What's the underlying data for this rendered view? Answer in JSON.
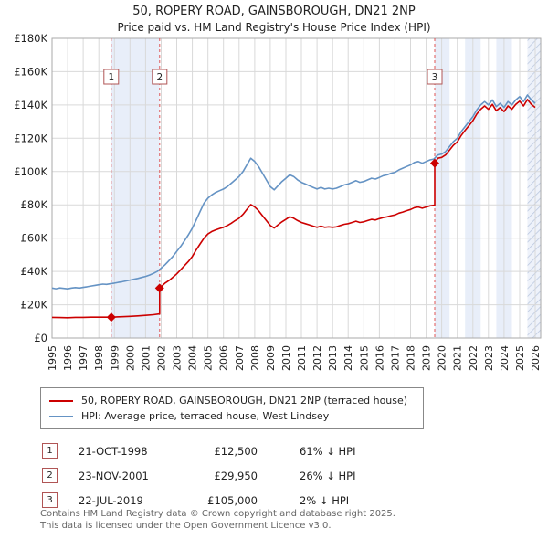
{
  "colors": {
    "property_line": "#cc0000",
    "hpi_line": "#6593c4",
    "band": "#e8eef9",
    "grid": "#d9d9d9",
    "sale_dashed": "#e05555",
    "plot_border": "#aaaaaa",
    "marker": "#cc0000",
    "numbox_border": "#b05555"
  },
  "chart_data": {
    "type": "line",
    "title": "50, ROPERY ROAD, GAINSBOROUGH, DN21 2NP",
    "subtitle": "Price paid vs. HM Land Registry's House Price Index (HPI)",
    "x_min": 1995,
    "x_max": 2026.35,
    "y_max_k": 180,
    "y_unit": "GBP, values in thousands",
    "y_tick_labels": [
      "£0",
      "£20K",
      "£40K",
      "£60K",
      "£80K",
      "£100K",
      "£120K",
      "£140K",
      "£160K",
      "£180K"
    ],
    "x_ticks": [
      1995,
      1996,
      1997,
      1998,
      1999,
      2000,
      2001,
      2002,
      2003,
      2004,
      2005,
      2006,
      2007,
      2008,
      2009,
      2010,
      2011,
      2012,
      2013,
      2014,
      2015,
      2016,
      2017,
      2018,
      2019,
      2020,
      2021,
      2022,
      2023,
      2024,
      2025,
      2026
    ],
    "grid": true,
    "legend_position": "bottom",
    "bands": [
      [
        1998.8,
        2001.9
      ],
      [
        2019.55,
        2020.5
      ],
      [
        2021.5,
        2022.5
      ],
      [
        2023.5,
        2024.5
      ],
      [
        2025.5,
        2026.35
      ]
    ],
    "hatch": [
      2025.5,
      2026.35
    ],
    "sales": [
      {
        "n": 1,
        "x": 1998.8,
        "y": 12.5
      },
      {
        "n": 2,
        "x": 2001.9,
        "y": 29.95
      },
      {
        "n": 3,
        "x": 2019.55,
        "y": 105
      }
    ],
    "series": [
      {
        "name": "50, ROPERY ROAD, GAINSBOROUGH, DN21 2NP (terraced house)",
        "color": "#cc0000",
        "width": 1.6,
        "points": [
          [
            1995,
            12.4
          ],
          [
            1995.5,
            12.3
          ],
          [
            1996,
            12.2
          ],
          [
            1996.5,
            12.4
          ],
          [
            1997,
            12.4
          ],
          [
            1997.5,
            12.5
          ],
          [
            1998,
            12.5
          ],
          [
            1998.8,
            12.5
          ],
          [
            1999.5,
            12.8
          ],
          [
            2000,
            13
          ],
          [
            2000.5,
            13.3
          ],
          [
            2001,
            13.6
          ],
          [
            2001.5,
            14
          ],
          [
            2001.9,
            14.5
          ],
          [
            2001.9,
            29.95
          ],
          [
            2002.25,
            33
          ],
          [
            2002.5,
            34.5
          ],
          [
            2002.75,
            36.5
          ],
          [
            2003,
            38.5
          ],
          [
            2003.25,
            41
          ],
          [
            2003.5,
            43.5
          ],
          [
            2003.75,
            46
          ],
          [
            2004,
            49
          ],
          [
            2004.25,
            53
          ],
          [
            2004.5,
            56.5
          ],
          [
            2004.75,
            60
          ],
          [
            2005,
            62.5
          ],
          [
            2005.25,
            64
          ],
          [
            2005.5,
            65
          ],
          [
            2005.75,
            65.8
          ],
          [
            2006,
            66.5
          ],
          [
            2006.25,
            67.6
          ],
          [
            2006.5,
            69
          ],
          [
            2006.75,
            70.6
          ],
          [
            2007,
            72
          ],
          [
            2007.25,
            74.3
          ],
          [
            2007.5,
            77.2
          ],
          [
            2007.75,
            80.2
          ],
          [
            2008,
            78.7
          ],
          [
            2008.25,
            76.5
          ],
          [
            2008.5,
            73.5
          ],
          [
            2008.75,
            70.6
          ],
          [
            2009,
            67.6
          ],
          [
            2009.25,
            66.1
          ],
          [
            2009.5,
            68
          ],
          [
            2009.75,
            69.8
          ],
          [
            2010,
            71.3
          ],
          [
            2010.25,
            72.8
          ],
          [
            2010.5,
            72
          ],
          [
            2010.75,
            70.6
          ],
          [
            2011,
            69.4
          ],
          [
            2011.25,
            68.7
          ],
          [
            2011.5,
            68
          ],
          [
            2011.75,
            67.2
          ],
          [
            2012,
            66.5
          ],
          [
            2012.25,
            67.2
          ],
          [
            2012.5,
            66.5
          ],
          [
            2012.75,
            66.8
          ],
          [
            2013,
            66.5
          ],
          [
            2013.25,
            66.8
          ],
          [
            2013.5,
            67.6
          ],
          [
            2013.75,
            68.3
          ],
          [
            2014,
            68.7
          ],
          [
            2014.25,
            69.4
          ],
          [
            2014.5,
            70.2
          ],
          [
            2014.75,
            69.4
          ],
          [
            2015,
            69.8
          ],
          [
            2015.25,
            70.6
          ],
          [
            2015.5,
            71.3
          ],
          [
            2015.75,
            70.9
          ],
          [
            2016,
            71.7
          ],
          [
            2016.25,
            72.4
          ],
          [
            2016.5,
            72.8
          ],
          [
            2016.75,
            73.5
          ],
          [
            2017,
            73.9
          ],
          [
            2017.25,
            75
          ],
          [
            2017.5,
            75.7
          ],
          [
            2017.75,
            76.5
          ],
          [
            2018,
            77.2
          ],
          [
            2018.25,
            78.3
          ],
          [
            2018.5,
            78.7
          ],
          [
            2018.75,
            78
          ],
          [
            2019,
            78.7
          ],
          [
            2019.25,
            79.4
          ],
          [
            2019.55,
            79.8
          ],
          [
            2019.55,
            105
          ],
          [
            2019.75,
            108
          ],
          [
            2020,
            108.5
          ],
          [
            2020.25,
            110
          ],
          [
            2020.5,
            112.9
          ],
          [
            2020.75,
            115.8
          ],
          [
            2021,
            117.8
          ],
          [
            2021.25,
            121.7
          ],
          [
            2021.5,
            124.7
          ],
          [
            2021.75,
            127.6
          ],
          [
            2022,
            130.6
          ],
          [
            2022.25,
            134.5
          ],
          [
            2022.5,
            137.4
          ],
          [
            2022.75,
            139.4
          ],
          [
            2023,
            137.4
          ],
          [
            2023.25,
            140.4
          ],
          [
            2023.5,
            136.5
          ],
          [
            2023.75,
            138.4
          ],
          [
            2024,
            136
          ],
          [
            2024.25,
            139.4
          ],
          [
            2024.5,
            137.4
          ],
          [
            2024.75,
            140.4
          ],
          [
            2025,
            142.3
          ],
          [
            2025.25,
            139.4
          ],
          [
            2025.5,
            143.3
          ],
          [
            2025.75,
            140.4
          ],
          [
            2026,
            138.5
          ]
        ]
      },
      {
        "name": "HPI: Average price, terraced house, West Lindsey",
        "color": "#6593c4",
        "width": 1.6,
        "points": [
          [
            1995,
            30
          ],
          [
            1995.25,
            29.6
          ],
          [
            1995.5,
            30.1
          ],
          [
            1995.75,
            29.8
          ],
          [
            1996,
            29.5
          ],
          [
            1996.25,
            30
          ],
          [
            1996.5,
            30.3
          ],
          [
            1996.75,
            30
          ],
          [
            1997,
            30.4
          ],
          [
            1997.25,
            30.8
          ],
          [
            1997.5,
            31.2
          ],
          [
            1997.75,
            31.6
          ],
          [
            1998,
            32
          ],
          [
            1998.25,
            32.4
          ],
          [
            1998.5,
            32.2
          ],
          [
            1998.75,
            32.6
          ],
          [
            1999,
            33
          ],
          [
            1999.25,
            33.4
          ],
          [
            1999.5,
            33.8
          ],
          [
            1999.75,
            34.3
          ],
          [
            2000,
            34.8
          ],
          [
            2000.25,
            35.3
          ],
          [
            2000.5,
            35.8
          ],
          [
            2000.75,
            36.4
          ],
          [
            2001,
            37
          ],
          [
            2001.25,
            37.8
          ],
          [
            2001.5,
            38.8
          ],
          [
            2001.75,
            40
          ],
          [
            2002,
            42
          ],
          [
            2002.25,
            44
          ],
          [
            2002.5,
            46.5
          ],
          [
            2002.75,
            49
          ],
          [
            2003,
            52
          ],
          [
            2003.25,
            55
          ],
          [
            2003.5,
            58.5
          ],
          [
            2003.75,
            62
          ],
          [
            2004,
            66
          ],
          [
            2004.25,
            71
          ],
          [
            2004.5,
            76
          ],
          [
            2004.75,
            81
          ],
          [
            2005,
            84
          ],
          [
            2005.25,
            86
          ],
          [
            2005.5,
            87.5
          ],
          [
            2005.75,
            88.5
          ],
          [
            2006,
            89.5
          ],
          [
            2006.25,
            91
          ],
          [
            2006.5,
            93
          ],
          [
            2006.75,
            95
          ],
          [
            2007,
            97
          ],
          [
            2007.25,
            100
          ],
          [
            2007.5,
            104
          ],
          [
            2007.75,
            108
          ],
          [
            2008,
            106
          ],
          [
            2008.25,
            103
          ],
          [
            2008.5,
            99
          ],
          [
            2008.75,
            95
          ],
          [
            2009,
            91
          ],
          [
            2009.25,
            89
          ],
          [
            2009.5,
            91.5
          ],
          [
            2009.75,
            94
          ],
          [
            2010,
            96
          ],
          [
            2010.25,
            98
          ],
          [
            2010.5,
            97
          ],
          [
            2010.75,
            95
          ],
          [
            2011,
            93.5
          ],
          [
            2011.25,
            92.5
          ],
          [
            2011.5,
            91.5
          ],
          [
            2011.75,
            90.5
          ],
          [
            2012,
            89.5
          ],
          [
            2012.25,
            90.5
          ],
          [
            2012.5,
            89.5
          ],
          [
            2012.75,
            90
          ],
          [
            2013,
            89.5
          ],
          [
            2013.25,
            90
          ],
          [
            2013.5,
            91
          ],
          [
            2013.75,
            92
          ],
          [
            2014,
            92.5
          ],
          [
            2014.25,
            93.5
          ],
          [
            2014.5,
            94.5
          ],
          [
            2014.75,
            93.5
          ],
          [
            2015,
            94
          ],
          [
            2015.25,
            95
          ],
          [
            2015.5,
            96
          ],
          [
            2015.75,
            95.5
          ],
          [
            2016,
            96.5
          ],
          [
            2016.25,
            97.5
          ],
          [
            2016.5,
            98
          ],
          [
            2016.75,
            99
          ],
          [
            2017,
            99.5
          ],
          [
            2017.25,
            101
          ],
          [
            2017.5,
            102
          ],
          [
            2017.75,
            103
          ],
          [
            2018,
            104
          ],
          [
            2018.25,
            105.5
          ],
          [
            2018.5,
            106
          ],
          [
            2018.75,
            105
          ],
          [
            2019,
            106
          ],
          [
            2019.25,
            107
          ],
          [
            2019.5,
            107.5
          ],
          [
            2019.75,
            110
          ],
          [
            2020,
            110.5
          ],
          [
            2020.25,
            112
          ],
          [
            2020.5,
            115
          ],
          [
            2020.75,
            118
          ],
          [
            2021,
            120
          ],
          [
            2021.25,
            124
          ],
          [
            2021.5,
            127
          ],
          [
            2021.75,
            130
          ],
          [
            2022,
            133
          ],
          [
            2022.25,
            137
          ],
          [
            2022.5,
            140
          ],
          [
            2022.75,
            142
          ],
          [
            2023,
            140
          ],
          [
            2023.25,
            143
          ],
          [
            2023.5,
            139
          ],
          [
            2023.75,
            141
          ],
          [
            2024,
            138.5
          ],
          [
            2024.25,
            142
          ],
          [
            2024.5,
            140
          ],
          [
            2024.75,
            143
          ],
          [
            2025,
            145
          ],
          [
            2025.25,
            142
          ],
          [
            2025.5,
            146
          ],
          [
            2025.75,
            143
          ],
          [
            2026,
            141
          ]
        ]
      }
    ]
  },
  "transactions": [
    {
      "num": "1",
      "date": "21-OCT-1998",
      "price": "£12,500",
      "hpi": "61% ↓ HPI"
    },
    {
      "num": "2",
      "date": "23-NOV-2001",
      "price": "£29,950",
      "hpi": "26% ↓ HPI"
    },
    {
      "num": "3",
      "date": "22-JUL-2019",
      "price": "£105,000",
      "hpi": "2% ↓ HPI"
    }
  ],
  "footer": {
    "line1": "Contains HM Land Registry data © Crown copyright and database right 2025.",
    "line2": "This data is licensed under the Open Government Licence v3.0."
  }
}
